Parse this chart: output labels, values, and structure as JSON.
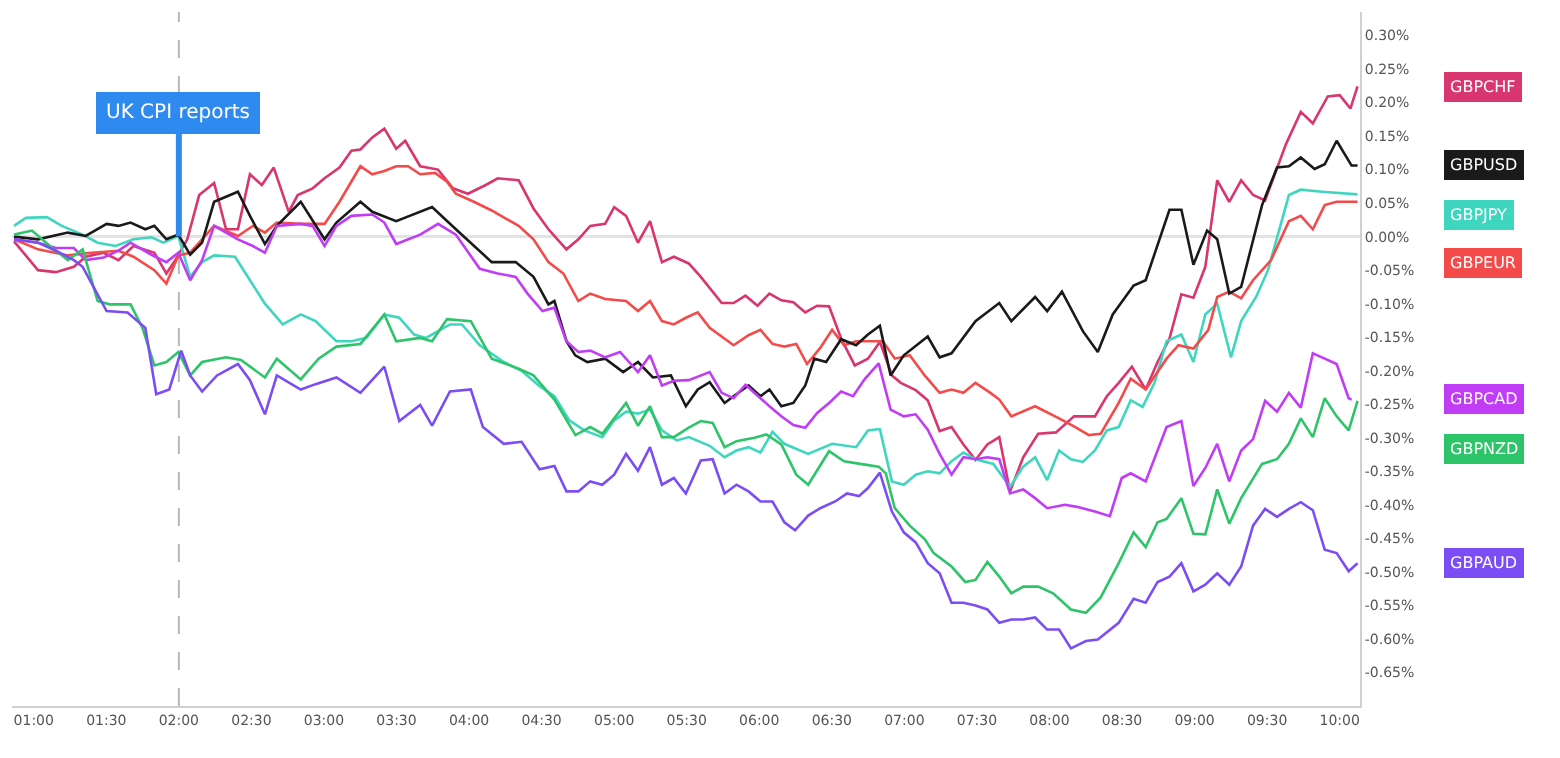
{
  "chart_data": {
    "type": "line",
    "xlim": [
      0.85,
      10.14
    ],
    "ylim": [
      -0.7,
      0.335
    ],
    "xticks": [
      {
        "value": 1,
        "label": "01:00"
      },
      {
        "value": 1.5,
        "label": "01:30"
      },
      {
        "value": 2,
        "label": "02:00"
      },
      {
        "value": 2.5,
        "label": "02:30"
      },
      {
        "value": 3,
        "label": "03:00"
      },
      {
        "value": 3.5,
        "label": "03:30"
      },
      {
        "value": 4,
        "label": "04:00"
      },
      {
        "value": 4.5,
        "label": "04:30"
      },
      {
        "value": 5,
        "label": "05:00"
      },
      {
        "value": 5.5,
        "label": "05:30"
      },
      {
        "value": 6,
        "label": "06:00"
      },
      {
        "value": 6.5,
        "label": "06:30"
      },
      {
        "value": 7,
        "label": "07:00"
      },
      {
        "value": 7.5,
        "label": "07:30"
      },
      {
        "value": 8,
        "label": "08:00"
      },
      {
        "value": 8.5,
        "label": "08:30"
      },
      {
        "value": 9,
        "label": "09:00"
      },
      {
        "value": 9.5,
        "label": "09:30"
      },
      {
        "value": 10,
        "label": "10:00"
      }
    ],
    "yticks": [
      {
        "value": 0.3,
        "label": "0.30%"
      },
      {
        "value": 0.25,
        "label": "0.25%"
      },
      {
        "value": 0.2,
        "label": "0.20%"
      },
      {
        "value": 0.15,
        "label": "0.15%"
      },
      {
        "value": 0.1,
        "label": "0.10%"
      },
      {
        "value": 0.05,
        "label": "0.05%"
      },
      {
        "value": 0,
        "label": "0.00%"
      },
      {
        "value": -0.05,
        "label": "-0.05%"
      },
      {
        "value": -0.1,
        "label": "-0.10%"
      },
      {
        "value": -0.15,
        "label": "-0.15%"
      },
      {
        "value": -0.2,
        "label": "-0.20%"
      },
      {
        "value": -0.25,
        "label": "-0.25%"
      },
      {
        "value": -0.3,
        "label": "-0.30%"
      },
      {
        "value": -0.35,
        "label": "-0.35%"
      },
      {
        "value": -0.4,
        "label": "-0.40%"
      },
      {
        "value": -0.45,
        "label": "-0.45%"
      },
      {
        "value": -0.5,
        "label": "-0.50%"
      },
      {
        "value": -0.55,
        "label": "-0.55%"
      },
      {
        "value": -0.6,
        "label": "-0.60%"
      },
      {
        "value": -0.65,
        "label": "-0.65%"
      }
    ],
    "grid": false,
    "legend": "right",
    "marker": "none",
    "line_style": "solid",
    "ref_lines": [
      {
        "axis": "y",
        "value": 0,
        "color": "#e3e3e3",
        "line_style": "solid"
      },
      {
        "axis": "x",
        "value": 2,
        "label": "UK CPI reports",
        "color": "#b8b8b8",
        "line_style": "dashed"
      }
    ],
    "series": [
      {
        "name": "GBPCHF",
        "color": "#d9356f",
        "x": [
          0.864,
          1.029,
          1.152,
          1.276,
          1.358,
          1.481,
          1.584,
          1.687,
          1.831,
          1.914,
          1.975,
          2.058,
          2.14,
          2.243,
          2.325,
          2.407,
          2.49,
          2.572,
          2.654,
          2.757,
          2.819,
          2.922,
          3.004,
          3.107,
          3.189,
          3.251,
          3.333,
          3.416,
          3.498,
          3.56,
          3.663,
          3.786,
          3.889,
          3.992,
          4.115,
          4.198,
          4.342,
          4.444,
          4.547,
          4.671,
          4.753,
          4.835,
          4.938,
          5.0,
          5.082,
          5.164,
          5.247,
          5.329,
          5.411,
          5.514,
          5.597,
          5.741,
          5.823,
          5.905,
          5.988,
          6.07,
          6.152,
          6.235,
          6.317,
          6.399,
          6.481,
          6.564,
          6.658,
          6.749,
          6.831,
          6.914,
          6.975,
          7.078,
          7.161,
          7.243,
          7.325,
          7.407,
          7.49,
          7.572,
          7.654,
          7.728,
          7.819,
          7.922,
          8.045,
          8.169,
          8.313,
          8.395,
          8.477,
          8.568,
          8.663,
          8.745,
          8.827,
          8.909,
          8.992,
          9.074,
          9.156,
          9.239,
          9.321,
          9.403,
          9.486,
          9.63,
          9.732,
          9.815,
          9.918,
          10.0,
          10.074,
          10.123
        ],
        "values": [
          -0.007,
          -0.05,
          -0.053,
          -0.045,
          -0.03,
          -0.024,
          -0.035,
          -0.014,
          -0.024,
          -0.055,
          -0.035,
          -0.004,
          0.062,
          0.08,
          0.011,
          0.011,
          0.093,
          0.077,
          0.103,
          0.037,
          0.062,
          0.072,
          0.087,
          0.103,
          0.128,
          0.13,
          0.148,
          0.161,
          0.131,
          0.143,
          0.105,
          0.1,
          0.072,
          0.064,
          0.077,
          0.087,
          0.084,
          0.042,
          0.011,
          -0.019,
          -0.004,
          0.016,
          0.019,
          0.044,
          0.031,
          -0.009,
          0.023,
          -0.038,
          -0.03,
          -0.04,
          -0.06,
          -0.099,
          -0.099,
          -0.088,
          -0.103,
          -0.085,
          -0.095,
          -0.098,
          -0.113,
          -0.103,
          -0.104,
          -0.152,
          -0.192,
          -0.182,
          -0.157,
          -0.207,
          -0.218,
          -0.229,
          -0.244,
          -0.29,
          -0.284,
          -0.31,
          -0.333,
          -0.31,
          -0.299,
          -0.38,
          -0.329,
          -0.294,
          -0.292,
          -0.268,
          -0.268,
          -0.238,
          -0.218,
          -0.194,
          -0.228,
          -0.187,
          -0.152,
          -0.086,
          -0.091,
          -0.045,
          0.084,
          0.052,
          0.084,
          0.062,
          0.054,
          0.138,
          0.186,
          0.169,
          0.209,
          0.211,
          0.191,
          0.224
        ]
      },
      {
        "name": "GBPJPY",
        "color": "#3fd6bf",
        "x": [
          0.864,
          0.946,
          1.09,
          1.193,
          1.337,
          1.44,
          1.564,
          1.687,
          1.811,
          1.893,
          1.996,
          2.078,
          2.16,
          2.243,
          2.387,
          2.49,
          2.593,
          2.716,
          2.84,
          2.942,
          3.086,
          3.189,
          3.292,
          3.416,
          3.519,
          3.621,
          3.704,
          3.786,
          3.868,
          3.951,
          4.074,
          4.239,
          4.362,
          4.486,
          4.588,
          4.691,
          4.794,
          4.918,
          5.0,
          5.082,
          5.164,
          5.247,
          5.329,
          5.432,
          5.514,
          5.658,
          5.761,
          5.843,
          5.926,
          6.008,
          6.091,
          6.173,
          6.337,
          6.502,
          6.667,
          6.749,
          6.831,
          6.914,
          6.996,
          7.078,
          7.161,
          7.243,
          7.325,
          7.407,
          7.49,
          7.613,
          7.728,
          7.819,
          7.901,
          7.984,
          8.066,
          8.148,
          8.23,
          8.313,
          8.395,
          8.477,
          8.56,
          8.642,
          8.724,
          8.807,
          8.909,
          8.992,
          9.074,
          9.156,
          9.251,
          9.321,
          9.424,
          9.506,
          9.65,
          9.732,
          9.877,
          10.123
        ],
        "values": [
          0.016,
          0.028,
          0.029,
          0.016,
          0.003,
          -0.009,
          -0.014,
          -0.004,
          -0.001,
          -0.009,
          0.001,
          -0.06,
          -0.038,
          -0.028,
          -0.03,
          -0.065,
          -0.1,
          -0.131,
          -0.116,
          -0.126,
          -0.156,
          -0.156,
          -0.151,
          -0.116,
          -0.121,
          -0.146,
          -0.151,
          -0.141,
          -0.131,
          -0.131,
          -0.162,
          -0.187,
          -0.2,
          -0.223,
          -0.238,
          -0.274,
          -0.289,
          -0.299,
          -0.274,
          -0.261,
          -0.264,
          -0.258,
          -0.289,
          -0.304,
          -0.299,
          -0.312,
          -0.329,
          -0.319,
          -0.314,
          -0.322,
          -0.291,
          -0.309,
          -0.324,
          -0.309,
          -0.314,
          -0.289,
          -0.287,
          -0.365,
          -0.37,
          -0.355,
          -0.35,
          -0.353,
          -0.335,
          -0.322,
          -0.332,
          -0.339,
          -0.373,
          -0.343,
          -0.329,
          -0.363,
          -0.319,
          -0.332,
          -0.336,
          -0.319,
          -0.289,
          -0.284,
          -0.244,
          -0.254,
          -0.218,
          -0.156,
          -0.146,
          -0.187,
          -0.116,
          -0.1,
          -0.18,
          -0.126,
          -0.09,
          -0.05,
          0.062,
          0.07,
          0.067,
          0.063
        ]
      },
      {
        "name": "GBPEUR",
        "color": "#f44a4a",
        "x": [
          0.864,
          1.029,
          1.235,
          1.399,
          1.584,
          1.687,
          1.831,
          1.914,
          1.996,
          2.078,
          2.16,
          2.243,
          2.407,
          2.51,
          2.593,
          2.675,
          2.84,
          3.004,
          3.107,
          3.251,
          3.333,
          3.416,
          3.498,
          3.58,
          3.663,
          3.765,
          3.848,
          3.909,
          4.033,
          4.156,
          4.342,
          4.444,
          4.547,
          4.65,
          4.753,
          4.835,
          4.938,
          5.082,
          5.164,
          5.247,
          5.329,
          5.411,
          5.494,
          5.576,
          5.658,
          5.823,
          5.926,
          6.008,
          6.091,
          6.173,
          6.255,
          6.329,
          6.42,
          6.502,
          6.584,
          6.667,
          6.77,
          6.852,
          6.934,
          7.037,
          7.14,
          7.243,
          7.325,
          7.407,
          7.49,
          7.593,
          7.654,
          7.737,
          7.901,
          8.066,
          8.169,
          8.272,
          8.353,
          8.477,
          8.56,
          8.663,
          8.807,
          8.889,
          8.992,
          9.095,
          9.156,
          9.239,
          9.321,
          9.403,
          9.527,
          9.65,
          9.732,
          9.815,
          9.897,
          9.979,
          10.082,
          10.123
        ],
        "values": [
          -0.004,
          -0.019,
          -0.028,
          -0.024,
          -0.021,
          -0.03,
          -0.05,
          -0.07,
          -0.028,
          -0.024,
          -0.004,
          0.016,
          0.001,
          0.016,
          0.006,
          0.021,
          0.019,
          0.019,
          0.052,
          0.105,
          0.093,
          0.098,
          0.105,
          0.105,
          0.093,
          0.095,
          0.082,
          0.064,
          0.052,
          0.039,
          0.016,
          -0.004,
          -0.038,
          -0.055,
          -0.096,
          -0.085,
          -0.093,
          -0.096,
          -0.111,
          -0.096,
          -0.126,
          -0.131,
          -0.121,
          -0.113,
          -0.136,
          -0.162,
          -0.147,
          -0.139,
          -0.16,
          -0.164,
          -0.16,
          -0.19,
          -0.166,
          -0.139,
          -0.162,
          -0.156,
          -0.156,
          -0.156,
          -0.182,
          -0.177,
          -0.207,
          -0.233,
          -0.228,
          -0.233,
          -0.218,
          -0.233,
          -0.243,
          -0.268,
          -0.253,
          -0.271,
          -0.283,
          -0.296,
          -0.294,
          -0.248,
          -0.212,
          -0.228,
          -0.182,
          -0.162,
          -0.167,
          -0.139,
          -0.09,
          -0.082,
          -0.092,
          -0.065,
          -0.035,
          0.023,
          0.031,
          0.011,
          0.047,
          0.052,
          0.052,
          0.052
        ]
      },
      {
        "name": "GBPUSD",
        "color": "#1a1a1a",
        "x": [
          0.864,
          1.029,
          1.235,
          1.358,
          1.502,
          1.584,
          1.667,
          1.769,
          1.831,
          1.914,
          1.996,
          2.078,
          2.16,
          2.243,
          2.407,
          2.49,
          2.593,
          2.675,
          2.84,
          3.004,
          3.086,
          3.251,
          3.333,
          3.498,
          3.745,
          3.909,
          4.156,
          4.321,
          4.444,
          4.547,
          4.588,
          4.671,
          4.732,
          4.815,
          4.938,
          5.062,
          5.164,
          5.267,
          5.391,
          5.494,
          5.576,
          5.658,
          5.761,
          5.823,
          5.926,
          6.008,
          6.07,
          6.152,
          6.235,
          6.317,
          6.379,
          6.461,
          6.564,
          6.667,
          6.749,
          6.831,
          6.905,
          6.996,
          7.161,
          7.243,
          7.325,
          7.49,
          7.654,
          7.737,
          7.901,
          7.984,
          8.086,
          8.23,
          8.333,
          8.436,
          8.58,
          8.663,
          8.827,
          8.909,
          8.992,
          9.086,
          9.156,
          9.239,
          9.321,
          9.465,
          9.568,
          9.65,
          9.732,
          9.827,
          9.897,
          9.979,
          10.082,
          10.123
        ],
        "values": [
          0,
          -0.004,
          0.006,
          0.001,
          0.019,
          0.016,
          0.021,
          0.011,
          0.016,
          -0.004,
          0.003,
          -0.027,
          -0.009,
          0.052,
          0.067,
          0.031,
          -0.011,
          0.016,
          0.052,
          -0.004,
          0.021,
          0.052,
          0.037,
          0.023,
          0.044,
          0.011,
          -0.038,
          -0.038,
          -0.06,
          -0.101,
          -0.096,
          -0.156,
          -0.177,
          -0.187,
          -0.182,
          -0.202,
          -0.187,
          -0.21,
          -0.207,
          -0.253,
          -0.228,
          -0.217,
          -0.248,
          -0.238,
          -0.222,
          -0.238,
          -0.228,
          -0.253,
          -0.248,
          -0.222,
          -0.182,
          -0.187,
          -0.153,
          -0.162,
          -0.146,
          -0.133,
          -0.207,
          -0.177,
          -0.149,
          -0.18,
          -0.174,
          -0.126,
          -0.099,
          -0.126,
          -0.09,
          -0.111,
          -0.082,
          -0.141,
          -0.172,
          -0.116,
          -0.073,
          -0.065,
          0.04,
          0.04,
          -0.042,
          0.009,
          -0.004,
          -0.085,
          -0.075,
          0.047,
          0.103,
          0.105,
          0.118,
          0.101,
          0.108,
          0.143,
          0.106,
          0.106
        ]
      },
      {
        "name": "GBPCAD",
        "color": "#c13cf5",
        "x": [
          0.864,
          1.029,
          1.152,
          1.276,
          1.358,
          1.481,
          1.584,
          1.667,
          1.811,
          1.914,
          1.996,
          2.078,
          2.16,
          2.243,
          2.407,
          2.51,
          2.593,
          2.675,
          2.84,
          2.922,
          3.004,
          3.086,
          3.189,
          3.333,
          3.416,
          3.498,
          3.663,
          3.786,
          3.909,
          4.074,
          4.198,
          4.321,
          4.403,
          4.506,
          4.588,
          4.671,
          4.753,
          4.835,
          4.938,
          5.041,
          5.164,
          5.247,
          5.329,
          5.411,
          5.514,
          5.658,
          5.741,
          5.823,
          5.905,
          6.008,
          6.07,
          6.152,
          6.235,
          6.317,
          6.399,
          6.481,
          6.564,
          6.646,
          6.728,
          6.823,
          6.905,
          6.996,
          7.078,
          7.161,
          7.243,
          7.325,
          7.407,
          7.49,
          7.572,
          7.654,
          7.728,
          7.819,
          7.901,
          7.984,
          8.107,
          8.189,
          8.313,
          8.416,
          8.498,
          8.56,
          8.663,
          8.807,
          8.909,
          8.992,
          9.074,
          9.156,
          9.239,
          9.321,
          9.403,
          9.486,
          9.568,
          9.65,
          9.732,
          9.815,
          9.897,
          9.979,
          10.062,
          10.082
        ],
        "values": [
          -0.004,
          -0.009,
          -0.017,
          -0.017,
          -0.035,
          -0.031,
          -0.021,
          -0.009,
          -0.027,
          -0.038,
          -0.024,
          -0.065,
          -0.035,
          0.016,
          -0.004,
          -0.014,
          -0.024,
          0.016,
          0.019,
          0.016,
          -0.014,
          0.016,
          0.031,
          0.033,
          0.021,
          -0.011,
          0.003,
          0.019,
          0.003,
          -0.048,
          -0.055,
          -0.06,
          -0.085,
          -0.111,
          -0.106,
          -0.156,
          -0.172,
          -0.17,
          -0.18,
          -0.172,
          -0.202,
          -0.177,
          -0.222,
          -0.215,
          -0.214,
          -0.202,
          -0.233,
          -0.241,
          -0.221,
          -0.241,
          -0.253,
          -0.268,
          -0.281,
          -0.285,
          -0.263,
          -0.248,
          -0.231,
          -0.238,
          -0.212,
          -0.189,
          -0.258,
          -0.268,
          -0.265,
          -0.288,
          -0.324,
          -0.355,
          -0.329,
          -0.332,
          -0.329,
          -0.332,
          -0.383,
          -0.377,
          -0.39,
          -0.405,
          -0.4,
          -0.403,
          -0.41,
          -0.417,
          -0.36,
          -0.353,
          -0.365,
          -0.284,
          -0.275,
          -0.372,
          -0.345,
          -0.309,
          -0.365,
          -0.319,
          -0.302,
          -0.245,
          -0.261,
          -0.233,
          -0.255,
          -0.174,
          -0.182,
          -0.19,
          -0.241,
          -0.243
        ]
      },
      {
        "name": "GBPNZD",
        "color": "#2ec46a",
        "x": [
          0.864,
          0.988,
          1.111,
          1.235,
          1.337,
          1.44,
          1.523,
          1.667,
          1.749,
          1.831,
          1.914,
          1.996,
          2.078,
          2.16,
          2.325,
          2.428,
          2.593,
          2.675,
          2.84,
          2.963,
          3.086,
          3.251,
          3.416,
          3.498,
          3.663,
          3.745,
          3.848,
          4.012,
          4.156,
          4.342,
          4.444,
          4.547,
          4.588,
          4.733,
          4.835,
          4.918,
          5.082,
          5.164,
          5.247,
          5.329,
          5.411,
          5.514,
          5.597,
          5.679,
          5.761,
          5.843,
          5.967,
          6.049,
          6.152,
          6.255,
          6.337,
          6.481,
          6.584,
          6.728,
          6.823,
          6.872,
          6.934,
          7.037,
          7.14,
          7.202,
          7.325,
          7.42,
          7.49,
          7.572,
          7.654,
          7.737,
          7.819,
          7.922,
          8.025,
          8.148,
          8.251,
          8.353,
          8.477,
          8.58,
          8.663,
          8.745,
          8.807,
          8.909,
          8.992,
          9.074,
          9.156,
          9.239,
          9.321,
          9.465,
          9.568,
          9.65,
          9.732,
          9.815,
          9.897,
          9.979,
          10.062,
          10.123
        ],
        "values": [
          0.003,
          0.009,
          -0.014,
          -0.035,
          -0.019,
          -0.096,
          -0.101,
          -0.101,
          -0.136,
          -0.192,
          -0.187,
          -0.172,
          -0.207,
          -0.187,
          -0.18,
          -0.184,
          -0.21,
          -0.182,
          -0.213,
          -0.182,
          -0.164,
          -0.16,
          -0.116,
          -0.156,
          -0.151,
          -0.156,
          -0.123,
          -0.126,
          -0.182,
          -0.197,
          -0.207,
          -0.233,
          -0.243,
          -0.296,
          -0.284,
          -0.294,
          -0.248,
          -0.282,
          -0.253,
          -0.299,
          -0.299,
          -0.285,
          -0.275,
          -0.278,
          -0.314,
          -0.305,
          -0.3,
          -0.295,
          -0.31,
          -0.355,
          -0.37,
          -0.32,
          -0.335,
          -0.34,
          -0.343,
          -0.353,
          -0.405,
          -0.431,
          -0.451,
          -0.472,
          -0.492,
          -0.515,
          -0.512,
          -0.485,
          -0.507,
          -0.532,
          -0.522,
          -0.522,
          -0.532,
          -0.556,
          -0.561,
          -0.538,
          -0.487,
          -0.441,
          -0.463,
          -0.426,
          -0.421,
          -0.39,
          -0.443,
          -0.444,
          -0.377,
          -0.428,
          -0.39,
          -0.339,
          -0.332,
          -0.309,
          -0.271,
          -0.299,
          -0.241,
          -0.268,
          -0.289,
          -0.245
        ]
      },
      {
        "name": "GBPAUD",
        "color": "#7b4df5",
        "x": [
          0.864,
          1.029,
          1.152,
          1.276,
          1.337,
          1.502,
          1.646,
          1.769,
          1.844,
          1.934,
          2.016,
          2.078,
          2.16,
          2.263,
          2.407,
          2.49,
          2.593,
          2.675,
          2.84,
          2.942,
          3.086,
          3.251,
          3.416,
          3.519,
          3.663,
          3.745,
          3.868,
          4.012,
          4.095,
          4.239,
          4.362,
          4.486,
          4.588,
          4.671,
          4.753,
          4.835,
          4.918,
          5.0,
          5.082,
          5.164,
          5.247,
          5.329,
          5.411,
          5.494,
          5.597,
          5.679,
          5.761,
          5.843,
          5.926,
          6.008,
          6.091,
          6.173,
          6.247,
          6.337,
          6.42,
          6.523,
          6.605,
          6.687,
          6.749,
          6.831,
          6.914,
          6.996,
          7.078,
          7.161,
          7.243,
          7.325,
          7.407,
          7.49,
          7.572,
          7.654,
          7.737,
          7.819,
          7.901,
          7.984,
          8.066,
          8.148,
          8.251,
          8.333,
          8.477,
          8.58,
          8.663,
          8.745,
          8.827,
          8.909,
          8.992,
          9.074,
          9.156,
          9.239,
          9.321,
          9.403,
          9.486,
          9.568,
          9.65,
          9.732,
          9.815,
          9.897,
          9.979,
          10.062,
          10.123
        ],
        "values": [
          -0.004,
          -0.009,
          -0.021,
          -0.035,
          -0.045,
          -0.111,
          -0.113,
          -0.136,
          -0.235,
          -0.228,
          -0.17,
          -0.207,
          -0.231,
          -0.207,
          -0.19,
          -0.214,
          -0.265,
          -0.207,
          -0.228,
          -0.22,
          -0.21,
          -0.233,
          -0.194,
          -0.275,
          -0.251,
          -0.282,
          -0.231,
          -0.228,
          -0.284,
          -0.309,
          -0.306,
          -0.347,
          -0.342,
          -0.38,
          -0.38,
          -0.365,
          -0.37,
          -0.355,
          -0.324,
          -0.349,
          -0.314,
          -0.37,
          -0.36,
          -0.383,
          -0.334,
          -0.332,
          -0.383,
          -0.37,
          -0.38,
          -0.395,
          -0.395,
          -0.426,
          -0.438,
          -0.416,
          -0.405,
          -0.395,
          -0.383,
          -0.387,
          -0.375,
          -0.352,
          -0.41,
          -0.441,
          -0.456,
          -0.487,
          -0.502,
          -0.546,
          -0.546,
          -0.55,
          -0.556,
          -0.576,
          -0.571,
          -0.571,
          -0.568,
          -0.586,
          -0.586,
          -0.614,
          -0.603,
          -0.601,
          -0.576,
          -0.54,
          -0.546,
          -0.515,
          -0.507,
          -0.487,
          -0.529,
          -0.519,
          -0.502,
          -0.519,
          -0.492,
          -0.431,
          -0.406,
          -0.418,
          -0.406,
          -0.396,
          -0.408,
          -0.467,
          -0.472,
          -0.499,
          -0.487
        ]
      }
    ]
  }
}
